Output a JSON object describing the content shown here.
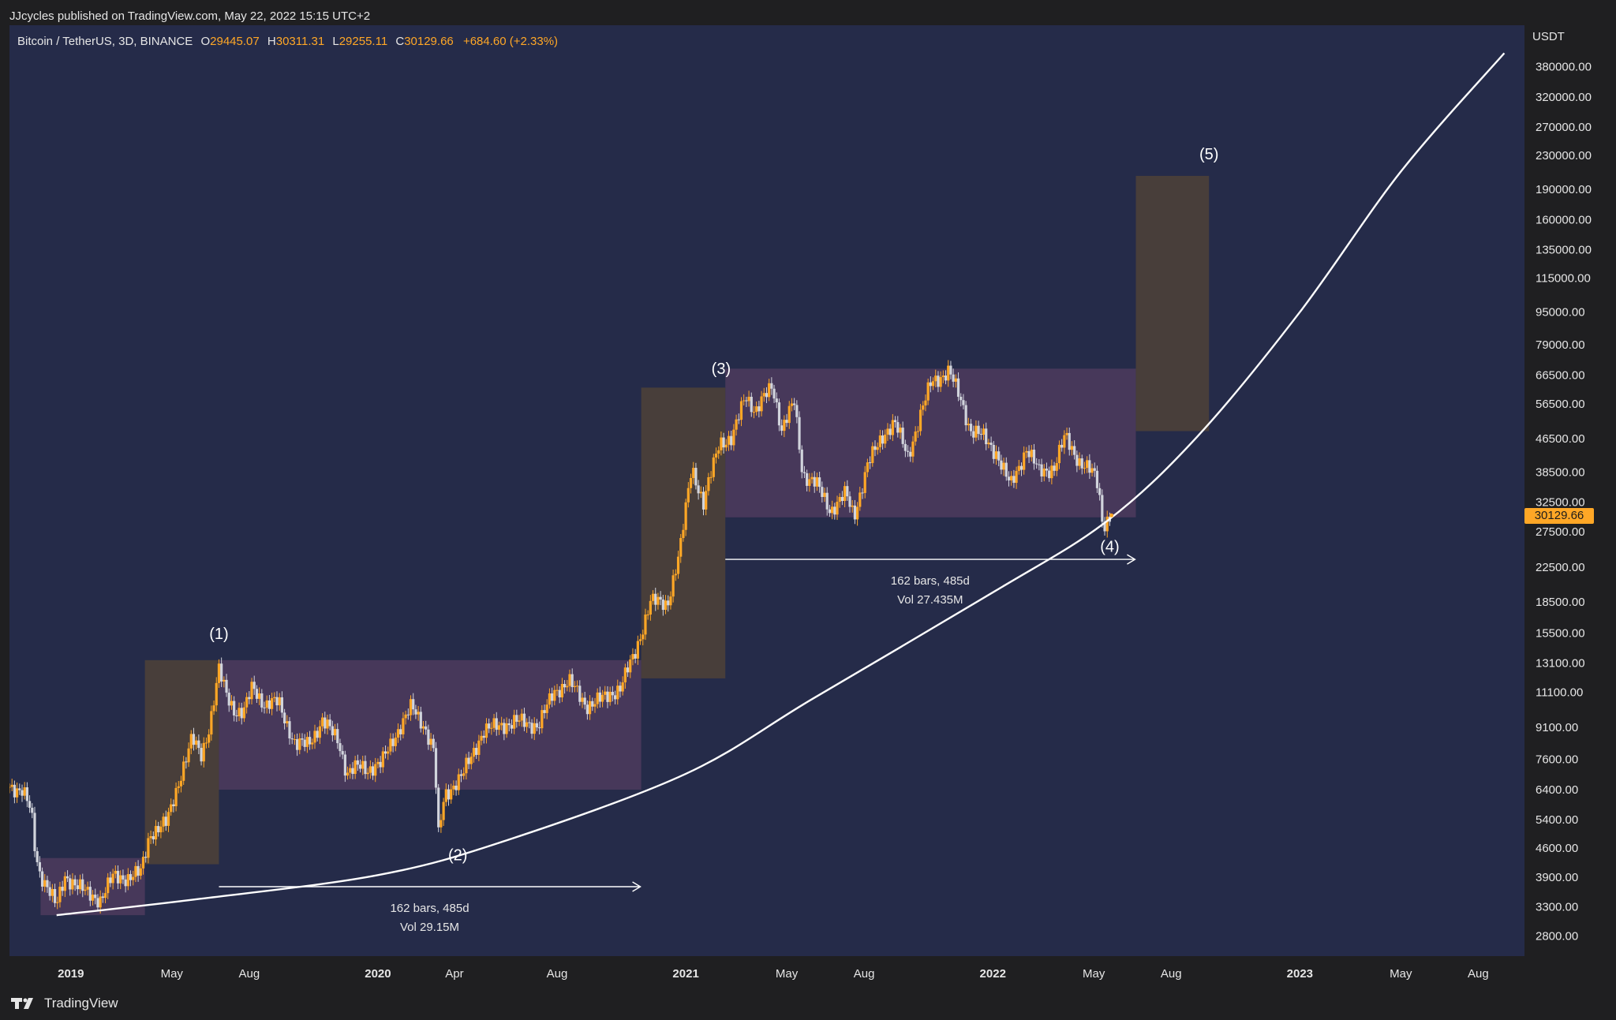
{
  "header": {
    "published": "JJcycles published on TradingView.com, May 22, 2022 15:15 UTC+2"
  },
  "legend": {
    "symbol": "Bitcoin / TetherUS, 3D, BINANCE",
    "o_label": "O",
    "o_value": "29445.07",
    "h_label": "H",
    "h_value": "30311.31",
    "l_label": "L",
    "l_value": "29255.11",
    "c_label": "C",
    "c_value": "30129.66",
    "change": "+684.60 (+2.33%)"
  },
  "price_axis": {
    "unit": "USDT",
    "current_price": "30129.66"
  },
  "footer": {
    "brand": "TradingView"
  },
  "colors": {
    "background": "#252b49",
    "page": "#1f1f21",
    "up_candle": "#ffa726",
    "down_candle": "#d1d4dc",
    "impulse_box": "#4a3f3a",
    "range_box": "#4b3a5c",
    "curve": "#ffffff"
  },
  "chart_data": {
    "type": "candlestick",
    "scale": "log",
    "ylim": [
      2500,
      480000
    ],
    "xlim": [
      "2018-10-20",
      "2023-09-25"
    ],
    "yticks": [
      "380000.00",
      "320000.00",
      "270000.00",
      "230000.00",
      "190000.00",
      "160000.00",
      "135000.00",
      "115000.00",
      "95000.00",
      "79000.00",
      "66500.00",
      "56500.00",
      "46500.00",
      "38500.00",
      "32500.00",
      "27500.00",
      "22500.00",
      "18500.00",
      "15500.00",
      "13100.00",
      "11100.00",
      "9100.00",
      "7600.00",
      "6400.00",
      "5400.00",
      "4600.00",
      "3900.00",
      "3300.00",
      "2800.00"
    ],
    "xticks": [
      {
        "label": "2019",
        "date": "2019-01-01",
        "bold": true
      },
      {
        "label": "May",
        "date": "2019-05-01",
        "bold": false
      },
      {
        "label": "Aug",
        "date": "2019-08-01",
        "bold": false
      },
      {
        "label": "2020",
        "date": "2020-01-01",
        "bold": true
      },
      {
        "label": "Apr",
        "date": "2020-04-01",
        "bold": false
      },
      {
        "label": "Aug",
        "date": "2020-08-01",
        "bold": false
      },
      {
        "label": "2021",
        "date": "2021-01-01",
        "bold": true
      },
      {
        "label": "May",
        "date": "2021-05-01",
        "bold": false
      },
      {
        "label": "Aug",
        "date": "2021-08-01",
        "bold": false
      },
      {
        "label": "2022",
        "date": "2022-01-01",
        "bold": true
      },
      {
        "label": "May",
        "date": "2022-05-01",
        "bold": false
      },
      {
        "label": "Aug",
        "date": "2022-08-01",
        "bold": false
      },
      {
        "label": "2023",
        "date": "2023-01-01",
        "bold": true
      },
      {
        "label": "May",
        "date": "2023-05-01",
        "bold": false
      },
      {
        "label": "Aug",
        "date": "2023-08-01",
        "bold": false
      }
    ],
    "price_path": [
      [
        "2018-10-20",
        6500
      ],
      [
        "2018-11-05",
        6400
      ],
      [
        "2018-11-15",
        5600
      ],
      [
        "2018-11-20",
        4400
      ],
      [
        "2018-11-25",
        4000
      ],
      [
        "2018-12-05",
        3700
      ],
      [
        "2018-12-15",
        3300
      ],
      [
        "2018-12-25",
        3900
      ],
      [
        "2019-01-05",
        3800
      ],
      [
        "2019-01-20",
        3550
      ],
      [
        "2019-02-05",
        3450
      ],
      [
        "2019-02-20",
        3900
      ],
      [
        "2019-03-10",
        3900
      ],
      [
        "2019-03-25",
        4000
      ],
      [
        "2019-04-05",
        5000
      ],
      [
        "2019-04-25",
        5300
      ],
      [
        "2019-05-10",
        6800
      ],
      [
        "2019-05-25",
        8500
      ],
      [
        "2019-06-05",
        7800
      ],
      [
        "2019-06-15",
        9200
      ],
      [
        "2019-06-26",
        12500
      ],
      [
        "2019-07-05",
        11000
      ],
      [
        "2019-07-15",
        10000
      ],
      [
        "2019-07-25",
        9800
      ],
      [
        "2019-08-05",
        11500
      ],
      [
        "2019-08-20",
        10300
      ],
      [
        "2019-09-05",
        10500
      ],
      [
        "2019-09-25",
        8200
      ],
      [
        "2019-10-10",
        8300
      ],
      [
        "2019-10-27",
        9400
      ],
      [
        "2019-11-15",
        8500
      ],
      [
        "2019-11-25",
        7000
      ],
      [
        "2019-12-10",
        7300
      ],
      [
        "2019-12-20",
        7200
      ],
      [
        "2020-01-05",
        7400
      ],
      [
        "2020-01-20",
        8600
      ],
      [
        "2020-02-10",
        10200
      ],
      [
        "2020-02-25",
        9200
      ],
      [
        "2020-03-08",
        7900
      ],
      [
        "2020-03-13",
        4900
      ],
      [
        "2020-03-20",
        6200
      ],
      [
        "2020-04-10",
        6900
      ],
      [
        "2020-05-05",
        8900
      ],
      [
        "2020-05-25",
        9200
      ],
      [
        "2020-06-15",
        9400
      ],
      [
        "2020-07-10",
        9200
      ],
      [
        "2020-07-28",
        11100
      ],
      [
        "2020-08-15",
        11800
      ],
      [
        "2020-09-05",
        10300
      ],
      [
        "2020-09-25",
        10700
      ],
      [
        "2020-10-15",
        11400
      ],
      [
        "2020-11-01",
        13700
      ],
      [
        "2020-11-20",
        18500
      ],
      [
        "2020-12-10",
        18300
      ],
      [
        "2020-12-25",
        24500
      ],
      [
        "2021-01-08",
        40000
      ],
      [
        "2021-01-22",
        32000
      ],
      [
        "2021-02-10",
        46000
      ],
      [
        "2021-02-25",
        46000
      ],
      [
        "2021-03-13",
        60000
      ],
      [
        "2021-03-25",
        54000
      ],
      [
        "2021-04-14",
        63000
      ],
      [
        "2021-04-25",
        49000
      ],
      [
        "2021-05-10",
        57000
      ],
      [
        "2021-05-20",
        38000
      ],
      [
        "2021-06-05",
        36000
      ],
      [
        "2021-06-22",
        31000
      ],
      [
        "2021-07-10",
        34000
      ],
      [
        "2021-07-20",
        30000
      ],
      [
        "2021-08-05",
        40000
      ],
      [
        "2021-08-25",
        48000
      ],
      [
        "2021-09-06",
        51000
      ],
      [
        "2021-09-22",
        42000
      ],
      [
        "2021-10-08",
        54000
      ],
      [
        "2021-10-20",
        64000
      ],
      [
        "2021-11-10",
        68000
      ],
      [
        "2021-11-25",
        57000
      ],
      [
        "2021-12-05",
        49000
      ],
      [
        "2021-12-20",
        47000
      ],
      [
        "2022-01-05",
        43000
      ],
      [
        "2022-01-22",
        35500
      ],
      [
        "2022-02-10",
        44000
      ],
      [
        "2022-02-25",
        38500
      ],
      [
        "2022-03-15",
        39500
      ],
      [
        "2022-03-28",
        47000
      ],
      [
        "2022-04-15",
        40500
      ],
      [
        "2022-05-01",
        38000
      ],
      [
        "2022-05-06",
        36000
      ],
      [
        "2022-05-12",
        28500
      ],
      [
        "2022-05-22",
        30129.66
      ]
    ],
    "impulse_boxes": [
      {
        "x0": "2019-03-30",
        "x1": "2019-06-26",
        "y0": 4200,
        "y1": 13300
      },
      {
        "x0": "2020-11-09",
        "x1": "2021-02-17",
        "y0": 12000,
        "y1": 62000
      },
      {
        "x0": "2022-06-20",
        "x1": "2022-09-15",
        "y0": 48500,
        "y1": 205000
      }
    ],
    "range_boxes": [
      {
        "x0": "2018-11-26",
        "x1": "2019-03-30",
        "y0": 3150,
        "y1": 4350
      },
      {
        "x0": "2019-06-26",
        "x1": "2020-11-09",
        "y0": 6400,
        "y1": 13300
      },
      {
        "x0": "2021-02-17",
        "x1": "2022-06-20",
        "y0": 29800,
        "y1": 69000
      }
    ],
    "curve": [
      [
        "2018-12-15",
        3150
      ],
      [
        "2019-06-01",
        3450
      ],
      [
        "2020-01-01",
        3950
      ],
      [
        "2020-06-01",
        4800
      ],
      [
        "2021-01-01",
        7000
      ],
      [
        "2021-06-01",
        10700
      ],
      [
        "2022-01-01",
        19500
      ],
      [
        "2022-05-15",
        29000
      ],
      [
        "2022-09-01",
        47000
      ],
      [
        "2023-01-01",
        95000
      ],
      [
        "2023-05-01",
        210000
      ],
      [
        "2023-09-01",
        410000
      ]
    ],
    "wave_labels": [
      {
        "text": "(1)",
        "date": "2019-06-26",
        "price": 15000
      },
      {
        "text": "(2)",
        "date": "2020-04-05",
        "price": 4300
      },
      {
        "text": "(3)",
        "date": "2021-02-12",
        "price": 67000
      },
      {
        "text": "(4)",
        "date": "2022-05-20",
        "price": 24500
      },
      {
        "text": "(5)",
        "date": "2022-09-15",
        "price": 225000
      }
    ],
    "measurements": [
      {
        "x0": "2019-06-26",
        "x1": "2020-11-08",
        "price": 3700,
        "line1": "162 bars, 485d",
        "line2": "Vol 29.15M"
      },
      {
        "x0": "2021-02-17",
        "x1": "2022-06-19",
        "price": 23500,
        "line1": "162 bars, 485d",
        "line2": "Vol 27.435M"
      }
    ]
  }
}
